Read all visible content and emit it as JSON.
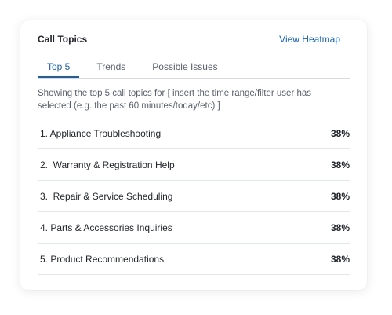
{
  "card": {
    "title": "Call Topics",
    "heatmap_link": "View Heatmap"
  },
  "tabs": [
    {
      "label": "Top 5",
      "active": true
    },
    {
      "label": "Trends",
      "active": false
    },
    {
      "label": "Possible Issues",
      "active": false
    }
  ],
  "description": "Showing the top 5 call topics for [ insert the time range/filter user has selected (e.g. the past 60 minutes/today/etc) ]",
  "topics": [
    {
      "label": "1. Appliance Troubleshooting",
      "value": "38%"
    },
    {
      "label": "2.  Warranty & Registration Help",
      "value": "38%"
    },
    {
      "label": "3.  Repair & Service Scheduling",
      "value": "38%"
    },
    {
      "label": "4. Parts & Accessories Inquiries",
      "value": "38%"
    },
    {
      "label": "5. Product Recommendations",
      "value": "38%"
    }
  ],
  "colors": {
    "accent": "#1a5fa8",
    "text": "#22252b",
    "muted": "#5a606b",
    "divider": "#e3e6ea"
  }
}
